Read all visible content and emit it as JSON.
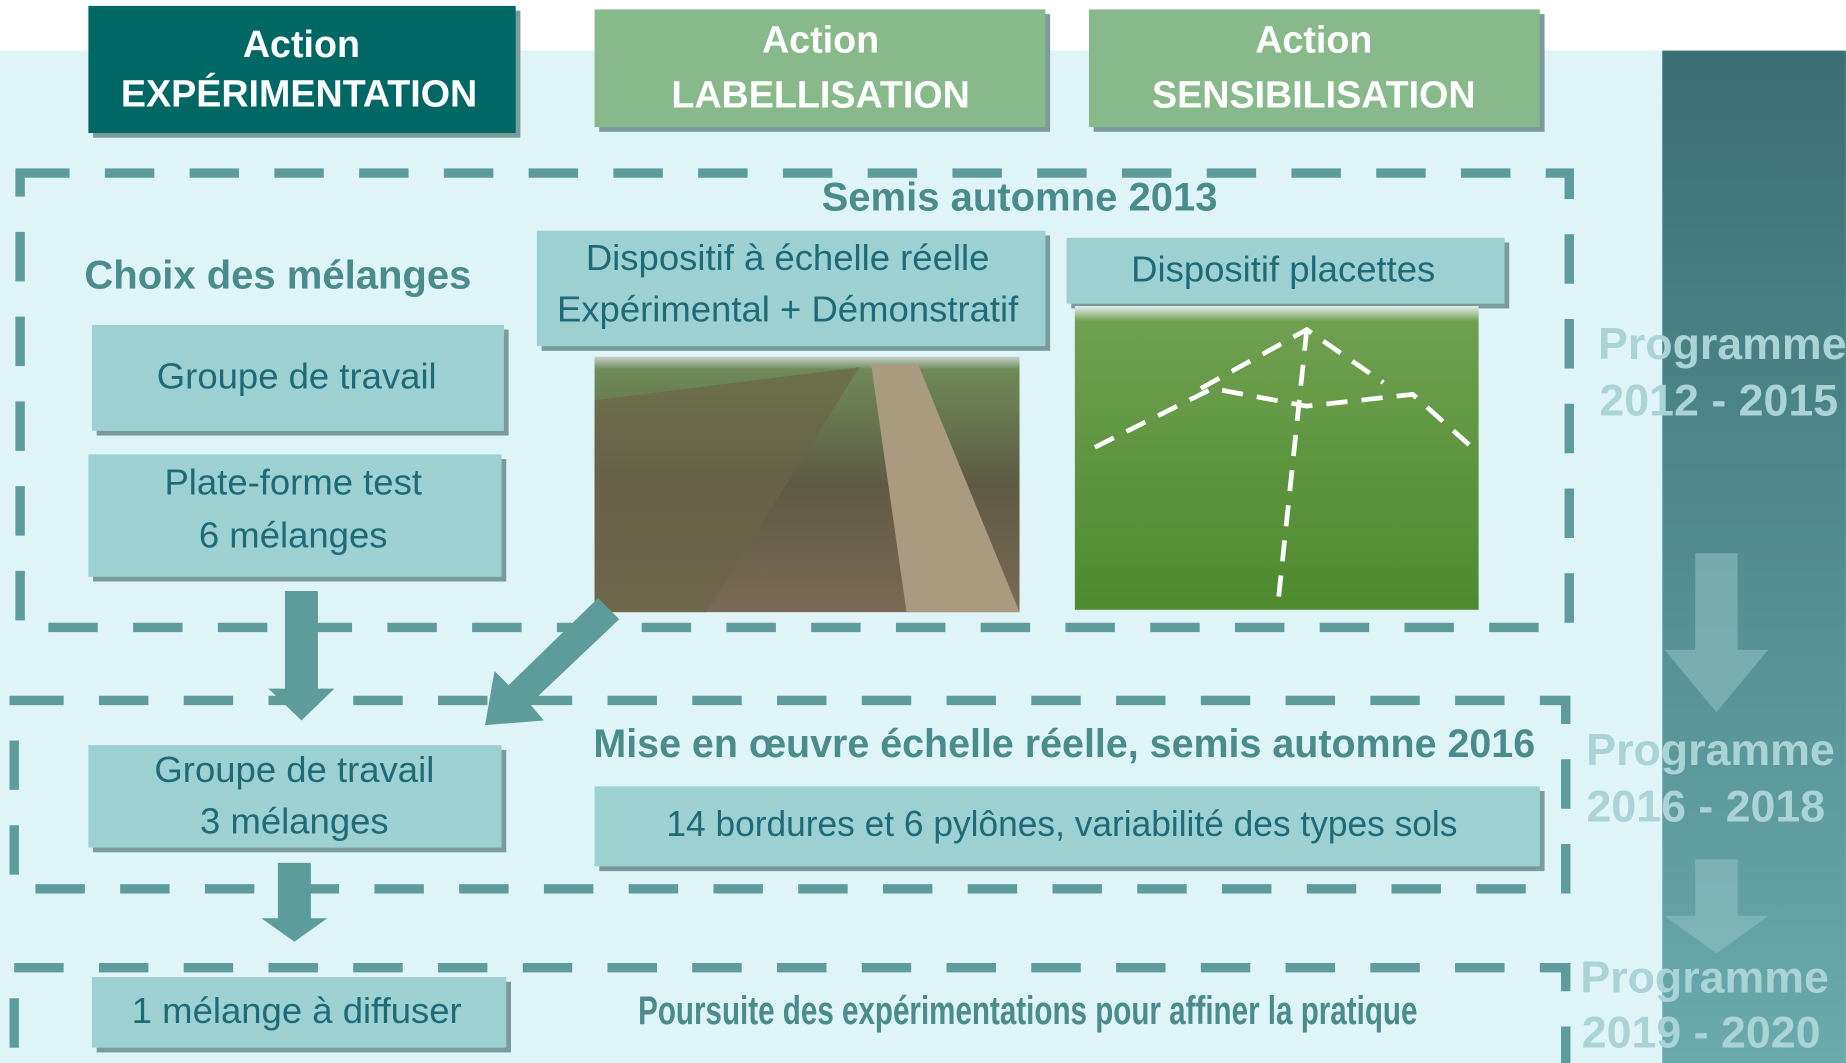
{
  "actions": [
    {
      "lines": [
        "Action",
        "EXPÉRIMENTATION"
      ]
    },
    {
      "lines": [
        "Action",
        "LABELLISATION"
      ]
    },
    {
      "lines": [
        "Action",
        "SENSIBILISATION"
      ]
    }
  ],
  "phase1": {
    "title": "Semis automne 2013",
    "left_title": "Choix des mélanges",
    "boxes": [
      {
        "lines": [
          "Groupe de travail"
        ]
      },
      {
        "lines": [
          "Plate-forme test",
          "6 mélanges"
        ]
      },
      {
        "lines": [
          "Dispositif à échelle réelle",
          "Expérimental + Démonstratif"
        ]
      },
      {
        "lines": [
          "Dispositif placettes"
        ]
      }
    ]
  },
  "phase2": {
    "title": "Mise en œuvre échelle réelle, semis automne 2016",
    "boxes": [
      {
        "lines": [
          "Groupe de travail",
          "3 mélanges"
        ]
      },
      {
        "lines": [
          "14 bordures et 6 pylônes, variabilité des types sols"
        ]
      }
    ]
  },
  "phase3": {
    "box": "1 mélange à diffuser",
    "note": "Poursuite des expérimentations pour affiner la pratique"
  },
  "programmes": [
    {
      "lines": [
        "Programme",
        "2012 - 2015"
      ]
    },
    {
      "lines": [
        "Programme",
        "2016 - 2018"
      ]
    },
    {
      "lines": [
        "Programme",
        "2019 - 2020"
      ]
    }
  ]
}
